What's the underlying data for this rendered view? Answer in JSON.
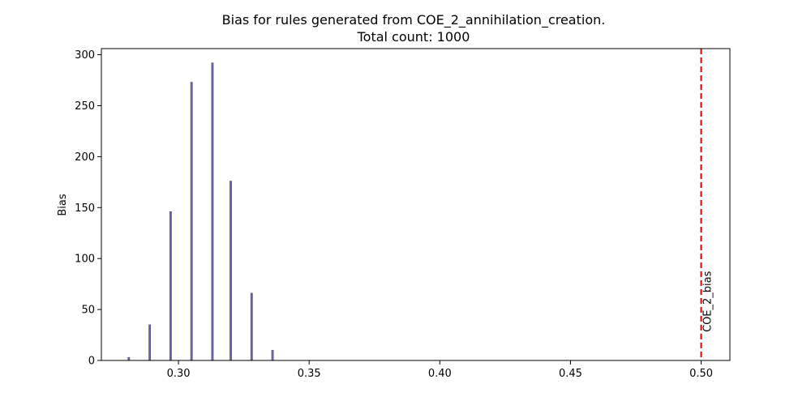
{
  "chart_data": {
    "type": "bar",
    "title": "Bias for rules generated from COE_2_annihilation_creation.",
    "subtitle": "Total count: 1000",
    "xlabel": "",
    "ylabel": "Bias",
    "xlim": [
      0.2705,
      0.511
    ],
    "ylim": [
      0,
      306
    ],
    "xticks": [
      {
        "value": 0.3,
        "label": "0.30"
      },
      {
        "value": 0.35,
        "label": "0.35"
      },
      {
        "value": 0.4,
        "label": "0.40"
      },
      {
        "value": 0.45,
        "label": "0.45"
      },
      {
        "value": 0.5,
        "label": "0.50"
      }
    ],
    "yticks": [
      {
        "value": 0,
        "label": "0"
      },
      {
        "value": 50,
        "label": "50"
      },
      {
        "value": 100,
        "label": "100"
      },
      {
        "value": 150,
        "label": "150"
      },
      {
        "value": 200,
        "label": "200"
      },
      {
        "value": 250,
        "label": "250"
      },
      {
        "value": 300,
        "label": "300"
      }
    ],
    "bars": [
      {
        "x": 0.281,
        "value": 3
      },
      {
        "x": 0.289,
        "value": 35
      },
      {
        "x": 0.297,
        "value": 146
      },
      {
        "x": 0.305,
        "value": 273
      },
      {
        "x": 0.313,
        "value": 292
      },
      {
        "x": 0.32,
        "value": 176
      },
      {
        "x": 0.328,
        "value": 66
      },
      {
        "x": 0.336,
        "value": 10
      }
    ],
    "bar_color": "#6a6aaa",
    "bar_edge_color": "#4b4b8a",
    "reference_line": {
      "x": 0.5,
      "label": "COE_2_bias",
      "color": "#dd0000",
      "style": "dashed"
    },
    "grid": false,
    "legend": "none"
  }
}
